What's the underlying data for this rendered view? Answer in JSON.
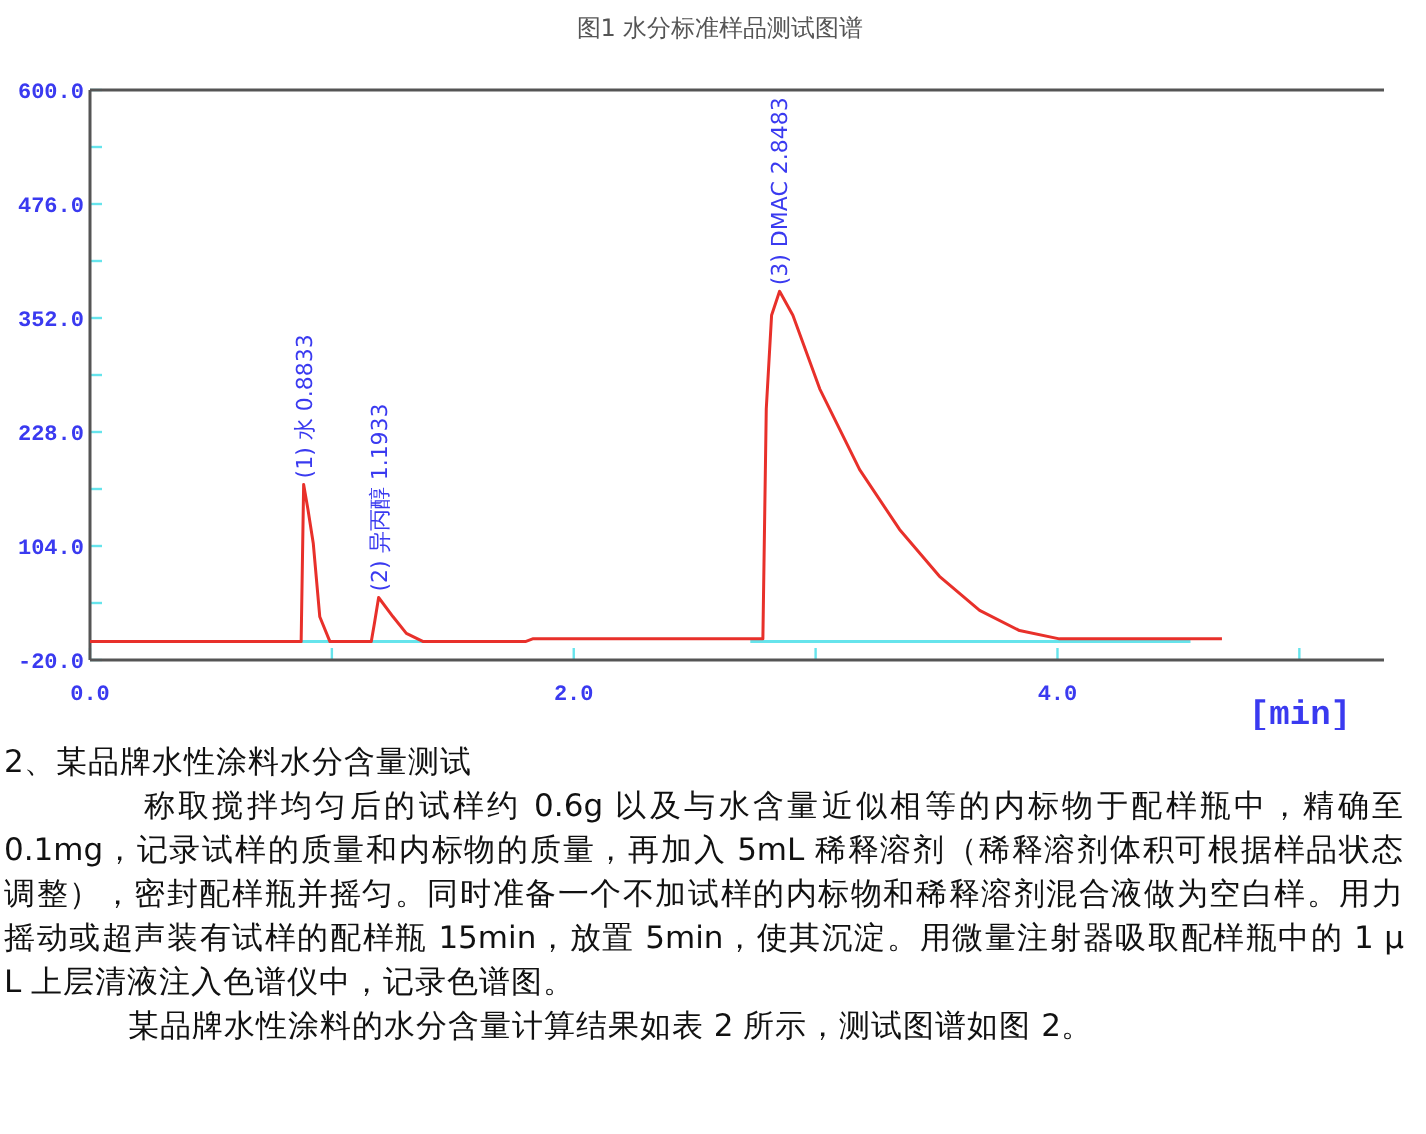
{
  "chart_data": {
    "type": "line",
    "title": "图1 水分标准样品测试图谱",
    "xlabel": "[min]",
    "xlim": [
      0,
      5.35
    ],
    "ylim": [
      -20,
      600
    ],
    "xticks": [
      {
        "value": 0,
        "label": "0.0"
      },
      {
        "value": 1,
        "label": null
      },
      {
        "value": 2,
        "label": "2.0"
      },
      {
        "value": 3,
        "label": null
      },
      {
        "value": 4,
        "label": "4.0"
      },
      {
        "value": 5,
        "label": null
      }
    ],
    "yticks": [
      {
        "value": -20,
        "label": "-20.0"
      },
      {
        "value": 42,
        "label": null
      },
      {
        "value": 104,
        "label": "104.0"
      },
      {
        "value": 166,
        "label": null
      },
      {
        "value": 228,
        "label": "228.0"
      },
      {
        "value": 290,
        "label": null
      },
      {
        "value": 352,
        "label": "352.0"
      },
      {
        "value": 414,
        "label": null
      },
      {
        "value": 476,
        "label": "476.0"
      },
      {
        "value": 538,
        "label": null
      },
      {
        "value": 600,
        "label": "600.0"
      }
    ],
    "grid": false,
    "series": [
      {
        "color": "#e8302a",
        "x": [
          0,
          0.873,
          0.8833,
          0.901,
          0.923,
          0.95,
          0.992,
          1.163,
          1.176,
          1.1933,
          1.253,
          1.308,
          1.378,
          1.8,
          1.83,
          2.782,
          2.796,
          2.818,
          2.851,
          2.906,
          3.017,
          3.182,
          3.347,
          3.512,
          3.678,
          3.843,
          4.008,
          4.17,
          4.68
        ],
        "values": [
          0,
          0,
          171,
          144,
          107,
          27,
          0,
          0,
          20,
          48,
          27,
          9,
          0,
          0,
          3,
          3,
          253,
          355,
          381,
          355,
          275,
          187,
          122,
          71,
          34,
          12,
          3,
          3,
          3
        ]
      },
      {
        "color": "#66e4ec",
        "x": [
          0.82,
          1.46
        ],
        "values": [
          0,
          0
        ]
      },
      {
        "color": "#66e4ec",
        "x": [
          2.73,
          4.55
        ],
        "values": [
          0,
          0
        ]
      }
    ],
    "annotations": [
      {
        "text": "(1) 水 0.8833",
        "x": 0.8833,
        "y": 171
      },
      {
        "text": "(2) 异丙醇 1.1933",
        "x": 1.1933,
        "y": 48
      },
      {
        "text": "(3) DMAC 2.8483",
        "x": 2.8483,
        "y": 381
      },
      "2、某品牌水性涂料水分含量测试",
      "称取搅拌均匀后的试样约 0.6g 以及与水含量近似相等的内标物于配样瓶中，精确至 0.1mg，记录试样的质量和内标物的质量，再加入 5mL 稀释溶剂（稀释溶剂体积可根据样品状态调整），密封配样瓶并摇匀。同时准备一个不加试样的内标物和稀释溶剂混合液做为空白样。用力摇动或超声装有试样的配样瓶 15min，放置 5min，使其沉淀。用微量注射器吸取配样瓶中的 1 μ L 上层清液注入色谱仪中，记录色谱图。",
      "某品牌水性涂料的水分含量计算结果如表 2 所示，测试图谱如图 2。"
    ]
  }
}
